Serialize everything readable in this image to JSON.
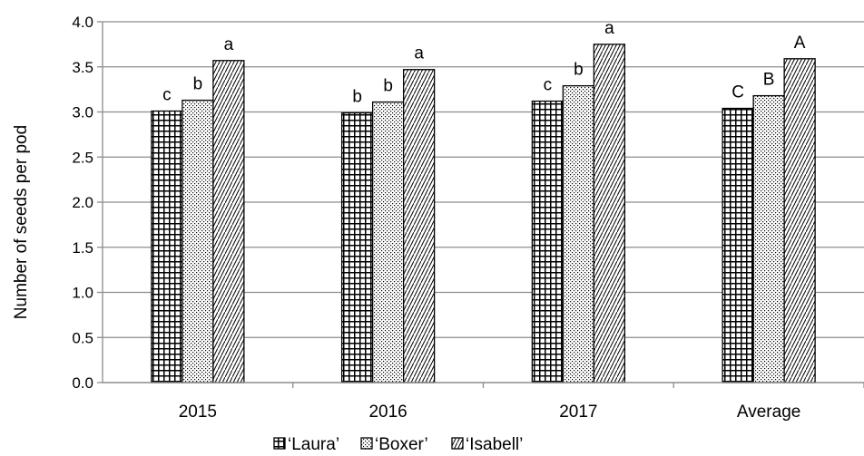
{
  "chart_data": {
    "type": "bar",
    "ylabel": "Number of seeds per pod",
    "ylim": [
      0,
      4.0
    ],
    "yticks": [
      "0.0",
      "0.5",
      "1.0",
      "1.5",
      "2.0",
      "2.5",
      "3.0",
      "3.5",
      "4.0"
    ],
    "grid": true,
    "legend_position": "bottom",
    "categories": [
      "2015",
      "2016",
      "2017",
      "Average"
    ],
    "series": [
      {
        "name": "‘Laura’",
        "pattern": "grid",
        "values": [
          3.01,
          2.99,
          3.12,
          3.04
        ],
        "letters": [
          "c",
          "b",
          "c",
          "C"
        ]
      },
      {
        "name": "‘Boxer’",
        "pattern": "dots",
        "values": [
          3.13,
          3.11,
          3.29,
          3.18
        ],
        "letters": [
          "b",
          "b",
          "b",
          "B"
        ]
      },
      {
        "name": "‘Isabell’",
        "pattern": "diagonal",
        "values": [
          3.57,
          3.47,
          3.75,
          3.59
        ],
        "letters": [
          "a",
          "a",
          "a",
          "A"
        ]
      }
    ],
    "colors": {
      "bar_stroke": "#000000",
      "gridline": "#8c8c8c",
      "background": "#ffffff"
    }
  }
}
